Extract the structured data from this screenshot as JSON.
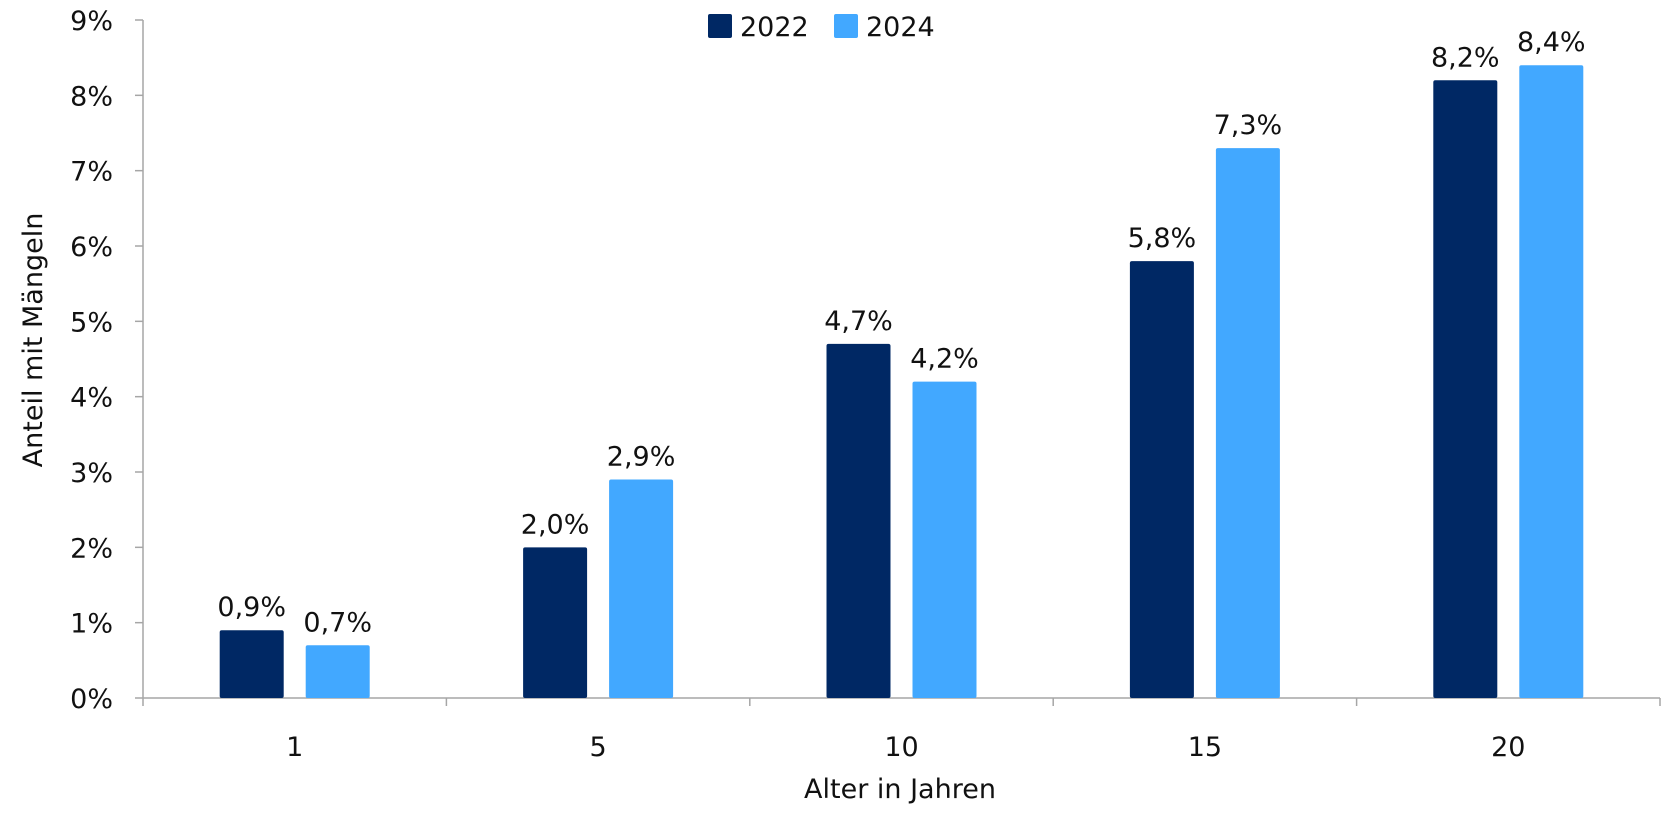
{
  "chart_data": {
    "type": "bar",
    "title": "",
    "xlabel": "Alter in Jahren",
    "ylabel": "Anteil mit Mängeln",
    "categories": [
      "1",
      "5",
      "10",
      "15",
      "20"
    ],
    "series": [
      {
        "name": "2022",
        "color": "#002864",
        "values": [
          0.9,
          2.0,
          4.7,
          5.8,
          8.2
        ],
        "labels": [
          "0,9%",
          "2,0%",
          "4,7%",
          "5,8%",
          "8,2%"
        ]
      },
      {
        "name": "2024",
        "color": "#42A8FF",
        "values": [
          0.7,
          2.9,
          4.2,
          7.3,
          8.4
        ],
        "labels": [
          "0,7%",
          "2,9%",
          "4,2%",
          "7,3%",
          "8,4%"
        ]
      }
    ],
    "ylim": [
      0,
      9
    ],
    "yticks": [
      "0%",
      "1%",
      "2%",
      "3%",
      "4%",
      "5%",
      "6%",
      "7%",
      "8%",
      "9%"
    ],
    "grid": false,
    "legend_position": "top-center"
  }
}
